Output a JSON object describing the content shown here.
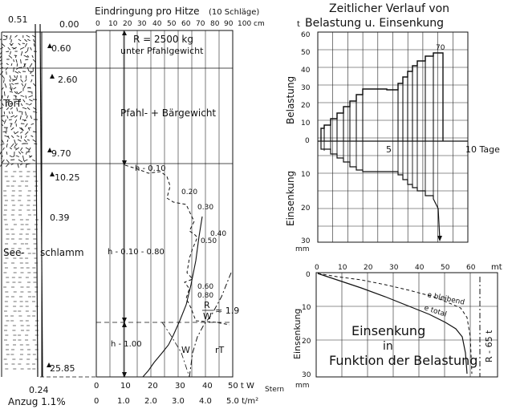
{
  "left": {
    "top_axis_title": "Eindringung pro Hitze",
    "top_axis_note": "(10 Schläge)",
    "top_axis_ticks": [
      "0",
      "10",
      "20",
      "30",
      "40",
      "50",
      "60",
      "70",
      "80",
      "90",
      "100 cm"
    ],
    "depth_labels": [
      "0.51",
      "0.00",
      "0.60",
      "2.60",
      "9.70",
      "10.25",
      "0.39",
      "25.85",
      "0.24"
    ],
    "soil_torf": "Torf",
    "soil_see": "See-",
    "soil_schlamm": "schlamm",
    "anzug": "Anzug 1.1%",
    "load_text_1": "R = 2500 kg",
    "load_text_2": "unter Pfahlgewicht",
    "load_text_3": "Pfahl- + Bärgewicht",
    "h_labels": [
      "h - 0.10",
      "h - 0.10 - 0.80",
      "h - 1.00"
    ],
    "curve_values": [
      "0.20",
      "0.30",
      "0.40",
      "0.50",
      "0.60",
      "0.80"
    ],
    "ratio_r": "R",
    "ratio_w": "W",
    "ratio_value": "≈ 1.9",
    "curve_w": "W",
    "curve_rt": "rT",
    "bottom_axis_1": [
      "0",
      "10",
      "20",
      "30",
      "40",
      "50 t W"
    ],
    "bottom_axis_1_sub": "Stern",
    "bottom_axis_2": [
      "0",
      "1.0",
      "2.0",
      "3.0",
      "4.0",
      "5.0 t/m²"
    ]
  },
  "top_right": {
    "title_line1": "Zeitlicher Verlauf von",
    "title_line2": "Belastung u. Einsenkung",
    "unit_t": "t",
    "ylabel_top": "Belastung",
    "ylabel_bottom": "Einsenkung",
    "yticks_top": [
      "60",
      "50",
      "40",
      "30",
      "20",
      "10",
      "0"
    ],
    "yticks_top_extra": "70",
    "yticks_bottom": [
      "10",
      "20",
      "30"
    ],
    "xtick_5": "5",
    "xtick_10": "10 Tage",
    "unit_mm": "mm"
  },
  "bottom_right": {
    "xticks": [
      "0",
      "10",
      "20",
      "30",
      "40",
      "50",
      "60",
      "mt"
    ],
    "ylabel": "Einsenkung",
    "yticks": [
      "0",
      "10",
      "20",
      "30"
    ],
    "unit_mm": "mm",
    "curve_bleibend": "e bleibend",
    "curve_total": "e total",
    "r_label": "R - 65 t",
    "caption_1": "Einsenkung",
    "caption_2": "in",
    "caption_3": "Funktion der Belastung"
  }
}
